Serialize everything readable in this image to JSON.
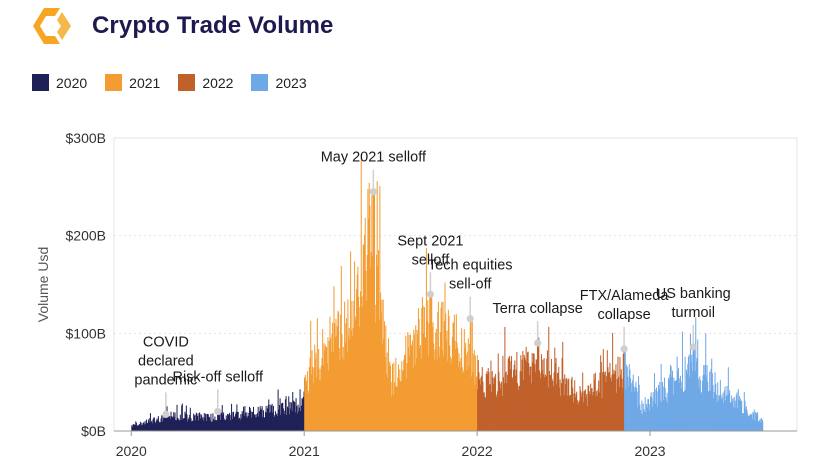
{
  "header": {
    "title": "Crypto Trade Volume",
    "logo_icon": "hexagon-brackets-logo-icon"
  },
  "colors": {
    "2020": "#1f2057",
    "2021": "#f39c32",
    "2022": "#c0602a",
    "2023": "#6fa8e6",
    "title": "#1c1a4f",
    "annotation_dot": "#cfcfcf"
  },
  "chart_data": {
    "type": "bar",
    "title": "Crypto Trade Volume",
    "xlabel": "",
    "ylabel": "Volume Usd",
    "ylim": [
      0,
      300
    ],
    "y_unit": "$B (billions USD)",
    "yticks": [
      {
        "value": 0,
        "label": "$0B"
      },
      {
        "value": 100,
        "label": "$100B"
      },
      {
        "value": 200,
        "label": "$200B"
      },
      {
        "value": 300,
        "label": "$300B"
      }
    ],
    "xticks": [
      {
        "value": 2020.0,
        "label": "2020"
      },
      {
        "value": 2021.0,
        "label": "2021"
      },
      {
        "value": 2022.0,
        "label": "2022"
      },
      {
        "value": 2023.0,
        "label": "2023"
      }
    ],
    "xlim": [
      2019.9,
      2023.85
    ],
    "grid": true,
    "legend_position": "top-left",
    "legend": [
      "2020",
      "2021",
      "2022",
      "2023"
    ],
    "series_segments": [
      {
        "name": "2020",
        "start": 2020.0,
        "end": 2021.0,
        "approx_daily_values": "5-30, rising toward year end"
      },
      {
        "name": "2021",
        "start": 2021.0,
        "end": 2022.0,
        "approx_daily_values": "40-240"
      },
      {
        "name": "2022",
        "start": 2022.0,
        "end": 2022.85,
        "approx_daily_values": "15-90"
      },
      {
        "name": "2023",
        "start": 2022.85,
        "end": 2023.65,
        "approx_daily_values": "8-75"
      }
    ],
    "key_points": [
      {
        "x": 2020.0,
        "y": 6
      },
      {
        "x": 2020.2,
        "y": 18
      },
      {
        "x": 2020.5,
        "y": 17
      },
      {
        "x": 2020.8,
        "y": 25
      },
      {
        "x": 2020.97,
        "y": 32
      },
      {
        "x": 2021.05,
        "y": 80
      },
      {
        "x": 2021.25,
        "y": 135
      },
      {
        "x": 2021.38,
        "y": 240
      },
      {
        "x": 2021.5,
        "y": 60
      },
      {
        "x": 2021.7,
        "y": 135
      },
      {
        "x": 2021.93,
        "y": 100
      },
      {
        "x": 2022.05,
        "y": 55
      },
      {
        "x": 2022.35,
        "y": 88
      },
      {
        "x": 2022.6,
        "y": 40
      },
      {
        "x": 2022.85,
        "y": 75
      },
      {
        "x": 2022.95,
        "y": 30
      },
      {
        "x": 2023.25,
        "y": 75
      },
      {
        "x": 2023.65,
        "y": 12
      }
    ],
    "annotations": [
      {
        "lines": [
          "COVID",
          "declared",
          "pandemic"
        ],
        "x": 2020.2,
        "dot_value": 17
      },
      {
        "lines": [
          "Risk-off selloff"
        ],
        "x": 2020.5,
        "dot_value": 20
      },
      {
        "lines": [
          "May 2021 selloff"
        ],
        "x": 2021.4,
        "dot_value": 245
      },
      {
        "lines": [
          "Sept 2021",
          "selloff"
        ],
        "x": 2021.73,
        "dot_value": 140
      },
      {
        "lines": [
          "Tech equities",
          "sell-off"
        ],
        "x": 2021.96,
        "dot_value": 115
      },
      {
        "lines": [
          "Terra collapse"
        ],
        "x": 2022.35,
        "dot_value": 90
      },
      {
        "lines": [
          "FTX/Alameda",
          "collapse"
        ],
        "x": 2022.85,
        "dot_value": 84
      },
      {
        "lines": [
          "US banking",
          "turmoil"
        ],
        "x": 2023.25,
        "dot_value": 86
      }
    ]
  }
}
